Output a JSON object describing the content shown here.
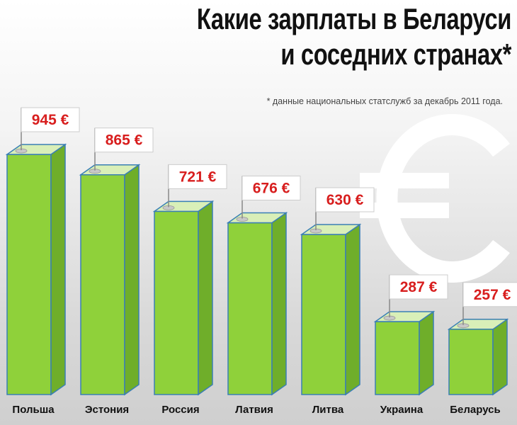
{
  "chart_data": {
    "type": "bar",
    "title_lines": [
      "Какие зарплаты в Беларуси",
      "и соседних странах*"
    ],
    "footnote": "* данные национальных статслужб за декабрь 2011 года.",
    "categories": [
      "Польша",
      "Эстония",
      "Россия",
      "Латвия",
      "Литва",
      "Украина",
      "Беларусь"
    ],
    "values": [
      945,
      865,
      721,
      676,
      630,
      287,
      257
    ],
    "value_labels": [
      "945 €",
      "865 €",
      "721 €",
      "676 €",
      "630 €",
      "287 €",
      "257 €"
    ],
    "unit": "€",
    "ylim": [
      0,
      945
    ],
    "grid": false,
    "legend": "none",
    "colors": {
      "bar_front": "#8fd13a",
      "bar_side": "#6fae2a",
      "bar_top": "#d9efb8",
      "bar_outline": "#3a7fb5",
      "label_text": "#d81e1e",
      "euro_symbol": "#ffffff"
    }
  }
}
